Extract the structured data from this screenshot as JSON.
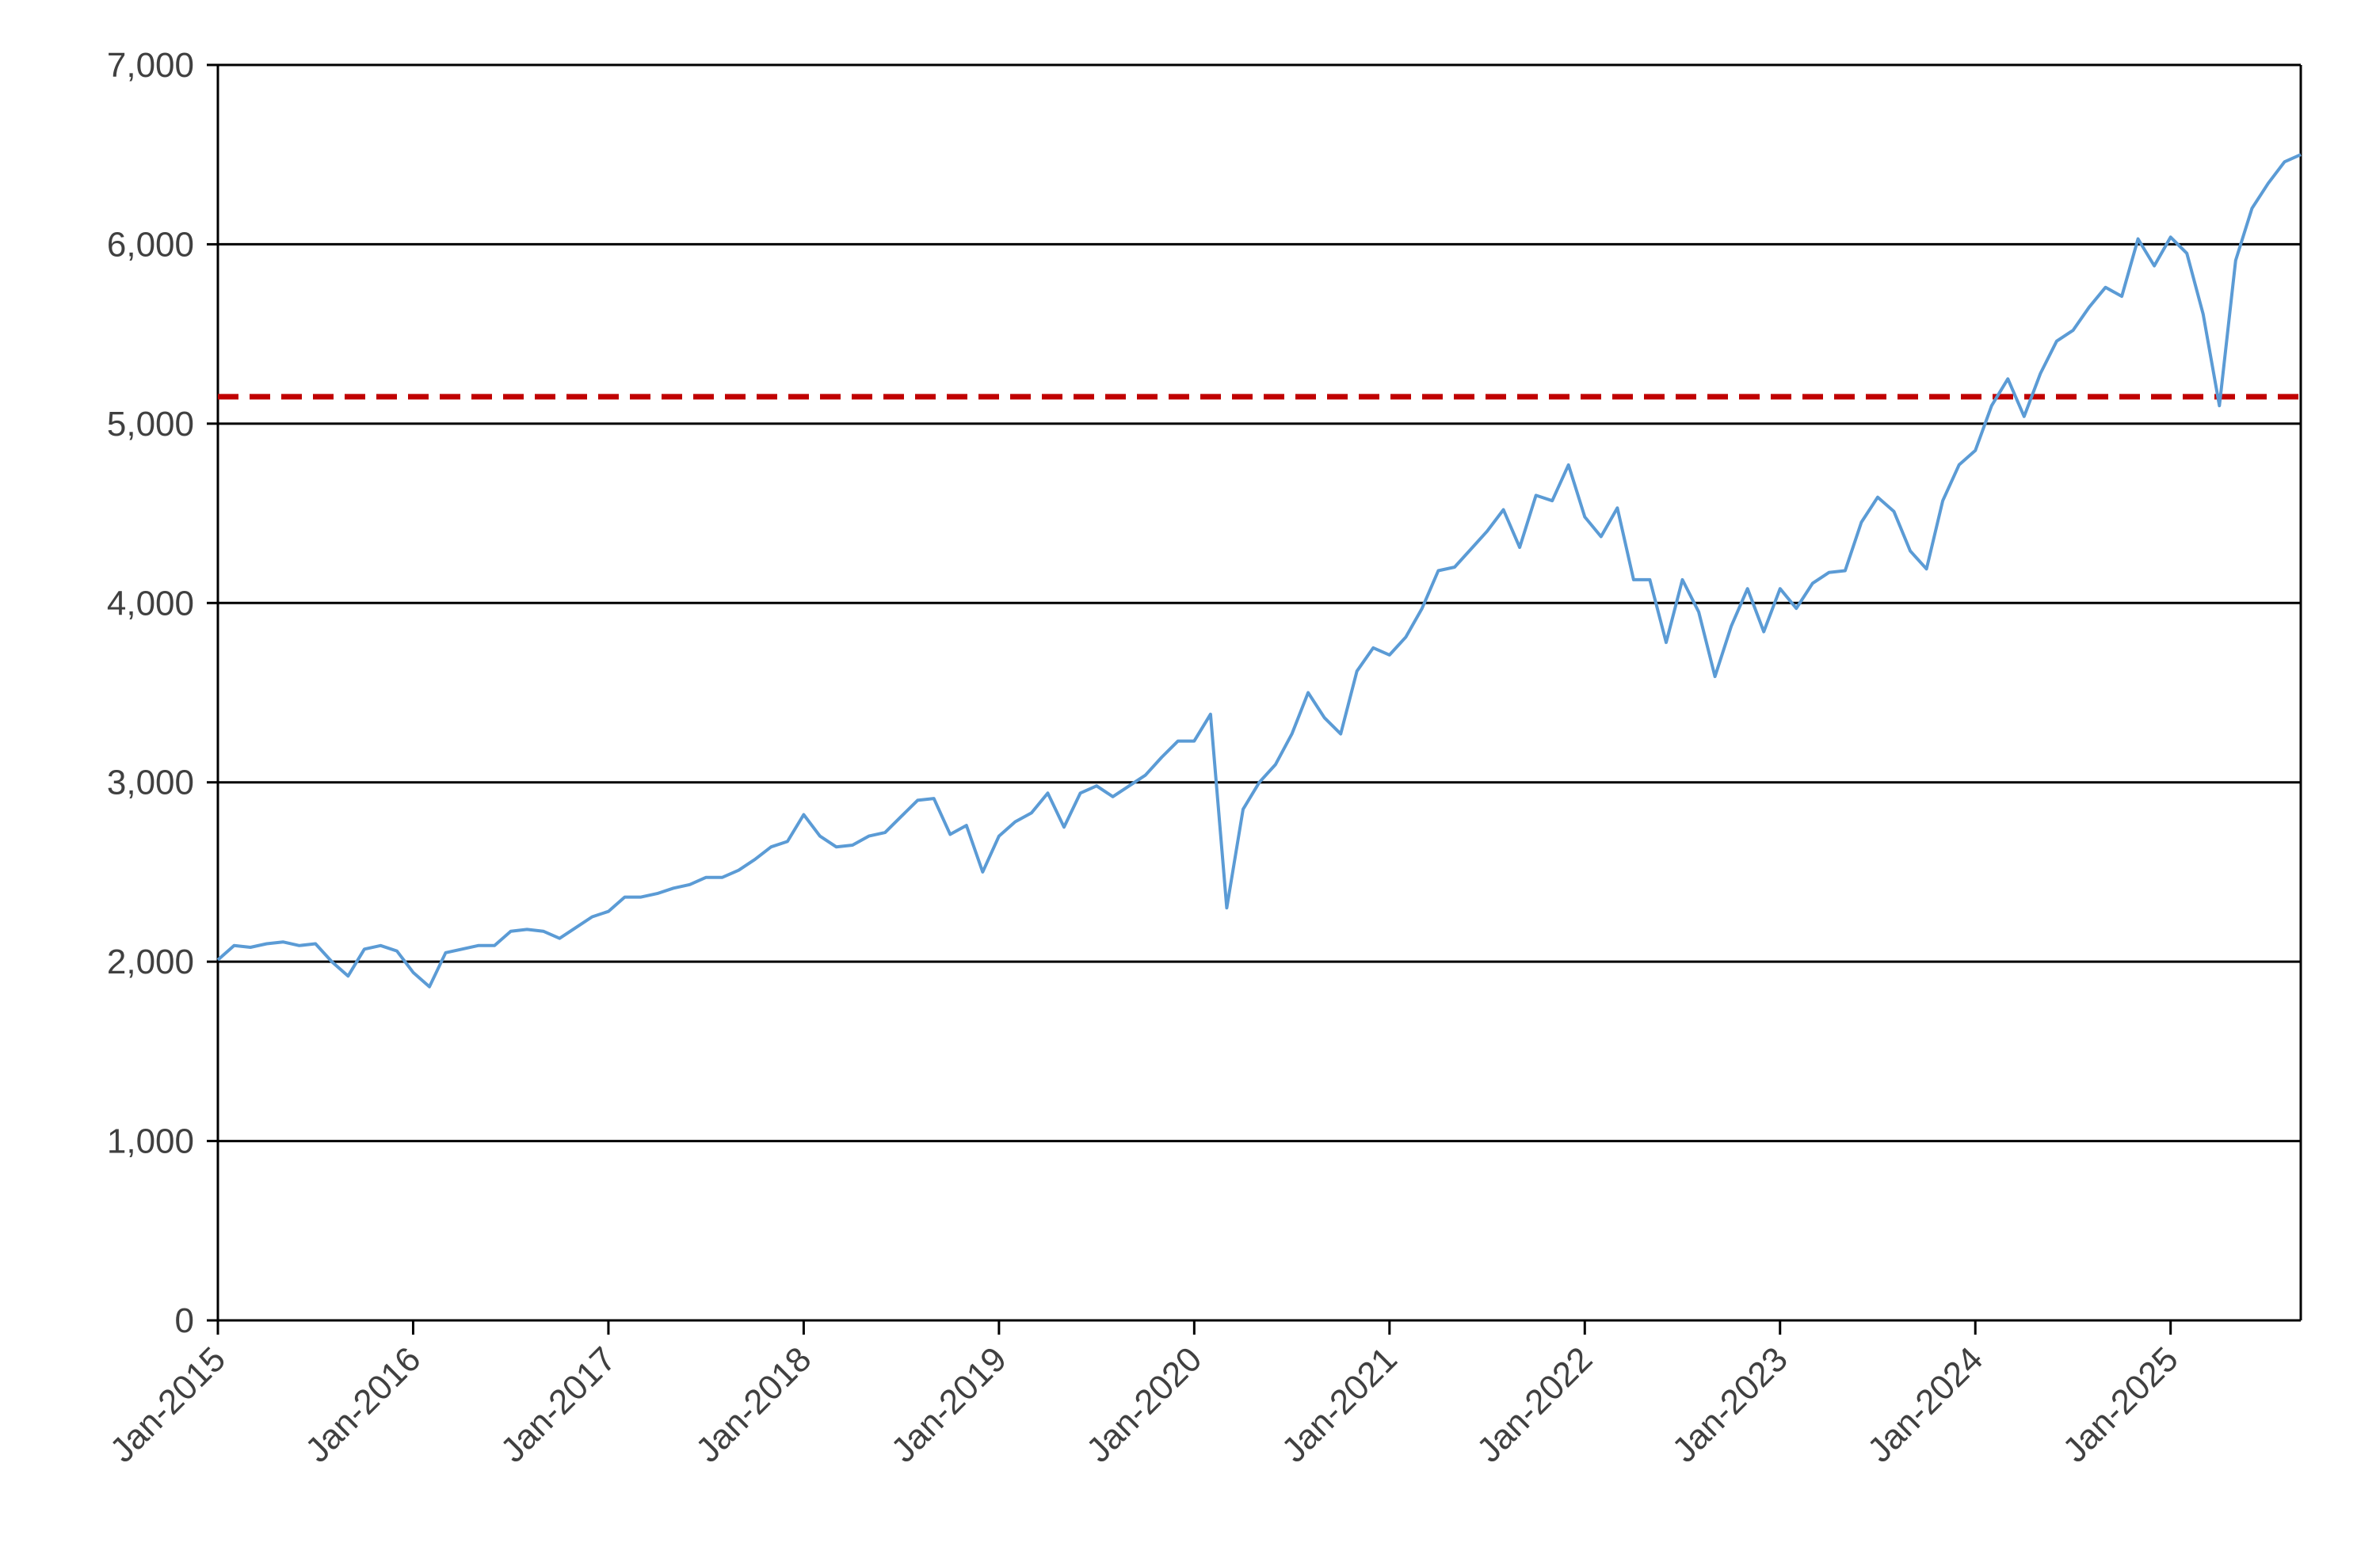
{
  "chart_data": {
    "type": "line",
    "title": "",
    "xlabel": "",
    "ylabel": "",
    "ylim": [
      0,
      7000
    ],
    "xlim": [
      "2015-01",
      "2025-09"
    ],
    "grid": "horizontal",
    "y_ticks": [
      {
        "value": 0,
        "label": "0"
      },
      {
        "value": 1000,
        "label": "1,000"
      },
      {
        "value": 2000,
        "label": "2,000"
      },
      {
        "value": 3000,
        "label": "3,000"
      },
      {
        "value": 4000,
        "label": "4,000"
      },
      {
        "value": 5000,
        "label": "5,000"
      },
      {
        "value": 6000,
        "label": "6,000"
      },
      {
        "value": 7000,
        "label": "7,000"
      }
    ],
    "x_ticks": [
      {
        "date": "2015-01",
        "label": "Jan-2015"
      },
      {
        "date": "2016-01",
        "label": "Jan-2016"
      },
      {
        "date": "2017-01",
        "label": "Jan-2017"
      },
      {
        "date": "2018-01",
        "label": "Jan-2018"
      },
      {
        "date": "2019-01",
        "label": "Jan-2019"
      },
      {
        "date": "2020-01",
        "label": "Jan-2020"
      },
      {
        "date": "2021-01",
        "label": "Jan-2021"
      },
      {
        "date": "2022-01",
        "label": "Jan-2022"
      },
      {
        "date": "2023-01",
        "label": "Jan-2023"
      },
      {
        "date": "2024-01",
        "label": "Jan-2024"
      },
      {
        "date": "2025-01",
        "label": "Jan-2025"
      }
    ],
    "reference_line": {
      "value": 5150,
      "color": "#c00000",
      "style": "dashed"
    },
    "series": [
      {
        "color": "#5b9bd5",
        "points": [
          [
            "2015-01",
            2010
          ],
          [
            "2015-02",
            2090
          ],
          [
            "2015-03",
            2080
          ],
          [
            "2015-04",
            2100
          ],
          [
            "2015-05",
            2110
          ],
          [
            "2015-06",
            2090
          ],
          [
            "2015-07",
            2100
          ],
          [
            "2015-08",
            2000
          ],
          [
            "2015-09",
            1920
          ],
          [
            "2015-10",
            2070
          ],
          [
            "2015-11",
            2090
          ],
          [
            "2015-12",
            2060
          ],
          [
            "2016-01",
            1940
          ],
          [
            "2016-02",
            1860
          ],
          [
            "2016-03",
            2050
          ],
          [
            "2016-04",
            2070
          ],
          [
            "2016-05",
            2090
          ],
          [
            "2016-06",
            2090
          ],
          [
            "2016-07",
            2170
          ],
          [
            "2016-08",
            2180
          ],
          [
            "2016-09",
            2170
          ],
          [
            "2016-10",
            2130
          ],
          [
            "2016-11",
            2190
          ],
          [
            "2016-12",
            2250
          ],
          [
            "2017-01",
            2280
          ],
          [
            "2017-02",
            2360
          ],
          [
            "2017-03",
            2360
          ],
          [
            "2017-04",
            2380
          ],
          [
            "2017-05",
            2410
          ],
          [
            "2017-06",
            2430
          ],
          [
            "2017-07",
            2470
          ],
          [
            "2017-08",
            2470
          ],
          [
            "2017-09",
            2510
          ],
          [
            "2017-10",
            2570
          ],
          [
            "2017-11",
            2640
          ],
          [
            "2017-12",
            2670
          ],
          [
            "2018-01",
            2820
          ],
          [
            "2018-02",
            2700
          ],
          [
            "2018-03",
            2640
          ],
          [
            "2018-04",
            2650
          ],
          [
            "2018-05",
            2700
          ],
          [
            "2018-06",
            2720
          ],
          [
            "2018-07",
            2810
          ],
          [
            "2018-08",
            2900
          ],
          [
            "2018-09",
            2910
          ],
          [
            "2018-10",
            2710
          ],
          [
            "2018-11",
            2760
          ],
          [
            "2018-12",
            2500
          ],
          [
            "2019-01",
            2700
          ],
          [
            "2019-02",
            2780
          ],
          [
            "2019-03",
            2830
          ],
          [
            "2019-04",
            2940
          ],
          [
            "2019-05",
            2750
          ],
          [
            "2019-06",
            2940
          ],
          [
            "2019-07",
            2980
          ],
          [
            "2019-08",
            2920
          ],
          [
            "2019-09",
            2980
          ],
          [
            "2019-10",
            3040
          ],
          [
            "2019-11",
            3140
          ],
          [
            "2019-12",
            3230
          ],
          [
            "2020-01",
            3230
          ],
          [
            "2020-02",
            3380
          ],
          [
            "2020-03",
            2300
          ],
          [
            "2020-04",
            2850
          ],
          [
            "2020-05",
            3000
          ],
          [
            "2020-06",
            3100
          ],
          [
            "2020-07",
            3270
          ],
          [
            "2020-08",
            3500
          ],
          [
            "2020-09",
            3360
          ],
          [
            "2020-10",
            3270
          ],
          [
            "2020-11",
            3620
          ],
          [
            "2020-12",
            3750
          ],
          [
            "2021-01",
            3710
          ],
          [
            "2021-02",
            3810
          ],
          [
            "2021-03",
            3970
          ],
          [
            "2021-04",
            4180
          ],
          [
            "2021-05",
            4200
          ],
          [
            "2021-06",
            4300
          ],
          [
            "2021-07",
            4400
          ],
          [
            "2021-08",
            4520
          ],
          [
            "2021-09",
            4310
          ],
          [
            "2021-10",
            4600
          ],
          [
            "2021-11",
            4570
          ],
          [
            "2021-12",
            4770
          ],
          [
            "2022-01",
            4480
          ],
          [
            "2022-02",
            4370
          ],
          [
            "2022-03",
            4530
          ],
          [
            "2022-04",
            4130
          ],
          [
            "2022-05",
            4130
          ],
          [
            "2022-06",
            3780
          ],
          [
            "2022-07",
            4130
          ],
          [
            "2022-08",
            3950
          ],
          [
            "2022-09",
            3590
          ],
          [
            "2022-10",
            3870
          ],
          [
            "2022-11",
            4080
          ],
          [
            "2022-12",
            3840
          ],
          [
            "2023-01",
            4080
          ],
          [
            "2023-02",
            3970
          ],
          [
            "2023-03",
            4110
          ],
          [
            "2023-04",
            4170
          ],
          [
            "2023-05",
            4180
          ],
          [
            "2023-06",
            4450
          ],
          [
            "2023-07",
            4590
          ],
          [
            "2023-08",
            4510
          ],
          [
            "2023-09",
            4290
          ],
          [
            "2023-10",
            4190
          ],
          [
            "2023-11",
            4570
          ],
          [
            "2023-12",
            4770
          ],
          [
            "2024-01",
            4850
          ],
          [
            "2024-02",
            5100
          ],
          [
            "2024-03",
            5250
          ],
          [
            "2024-04",
            5040
          ],
          [
            "2024-05",
            5280
          ],
          [
            "2024-06",
            5460
          ],
          [
            "2024-07",
            5520
          ],
          [
            "2024-08",
            5650
          ],
          [
            "2024-09",
            5760
          ],
          [
            "2024-10",
            5710
          ],
          [
            "2024-11",
            6030
          ],
          [
            "2024-12",
            5880
          ],
          [
            "2025-01",
            6040
          ],
          [
            "2025-02",
            5950
          ],
          [
            "2025-03",
            5610
          ],
          [
            "2025-04",
            5100
          ],
          [
            "2025-05",
            5910
          ],
          [
            "2025-06",
            6200
          ],
          [
            "2025-07",
            6340
          ],
          [
            "2025-08",
            6460
          ],
          [
            "2025-09",
            6500
          ]
        ]
      }
    ]
  }
}
